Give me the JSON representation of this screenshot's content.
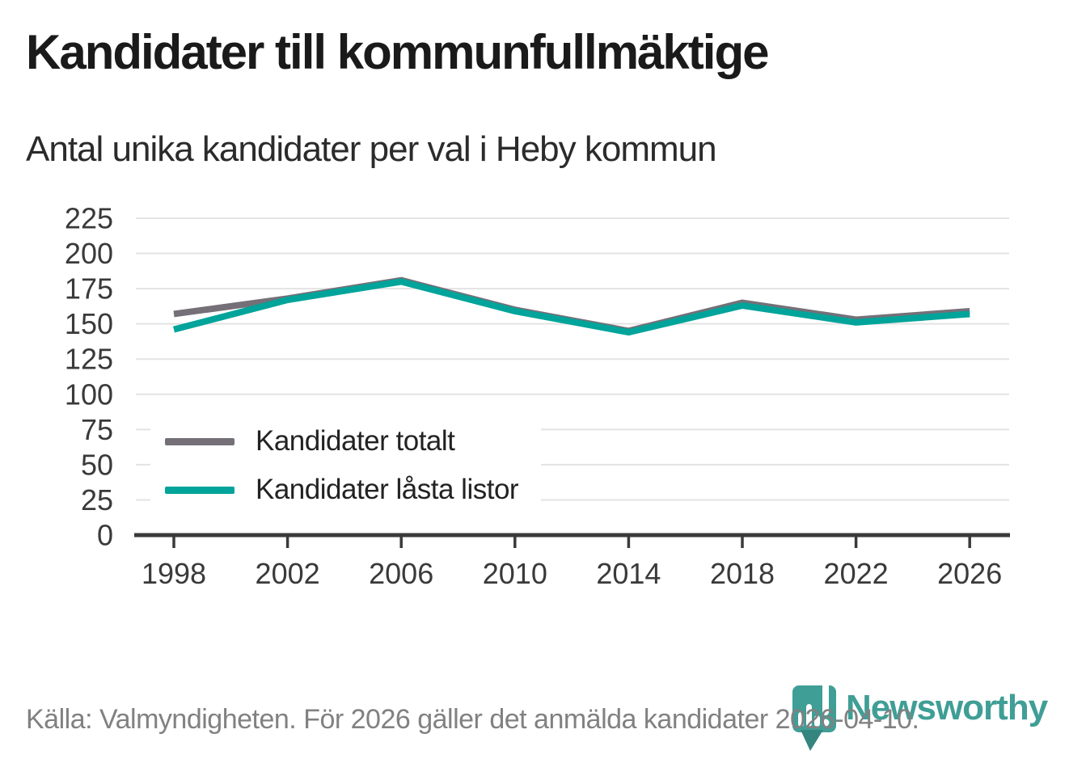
{
  "header": {
    "title": "Kandidater till kommunfullmäktige",
    "subtitle": "Antal unika kandidater per val i Heby kommun"
  },
  "chart_data": {
    "type": "line",
    "title": "Kandidater till kommunfullmäktige",
    "subtitle": "Antal unika kandidater per val i Heby kommun",
    "x": [
      1998,
      2002,
      2006,
      2010,
      2014,
      2018,
      2022,
      2026
    ],
    "series": [
      {
        "name": "Kandidater totalt",
        "color": "#757078",
        "values": [
          157,
          168,
          181,
          160,
          145,
          165,
          153,
          159
        ]
      },
      {
        "name": "Kandidater låsta listor",
        "color": "#00a49a",
        "values": [
          146,
          167,
          180,
          159,
          144,
          163,
          151,
          157
        ]
      }
    ],
    "ylim": [
      0,
      225
    ],
    "ytick_step": 25,
    "yticks": [
      0,
      25,
      50,
      75,
      100,
      125,
      150,
      175,
      200,
      225
    ],
    "grid": true,
    "legend_position": "inside-bottom-left"
  },
  "footer": {
    "source": "Källa: Valmyndigheten. För 2026 gäller det anmälda kandidater 2026-04-10.",
    "brand": "Newsworthy"
  },
  "colors": {
    "accent_teal": "#00a49a",
    "series_gray": "#757078",
    "logo_teal": "#3f9e96",
    "gridline": "#e3e3e3",
    "axis": "#3a3a3a",
    "text_dark": "#1a1a1a",
    "text_muted": "#818181"
  }
}
